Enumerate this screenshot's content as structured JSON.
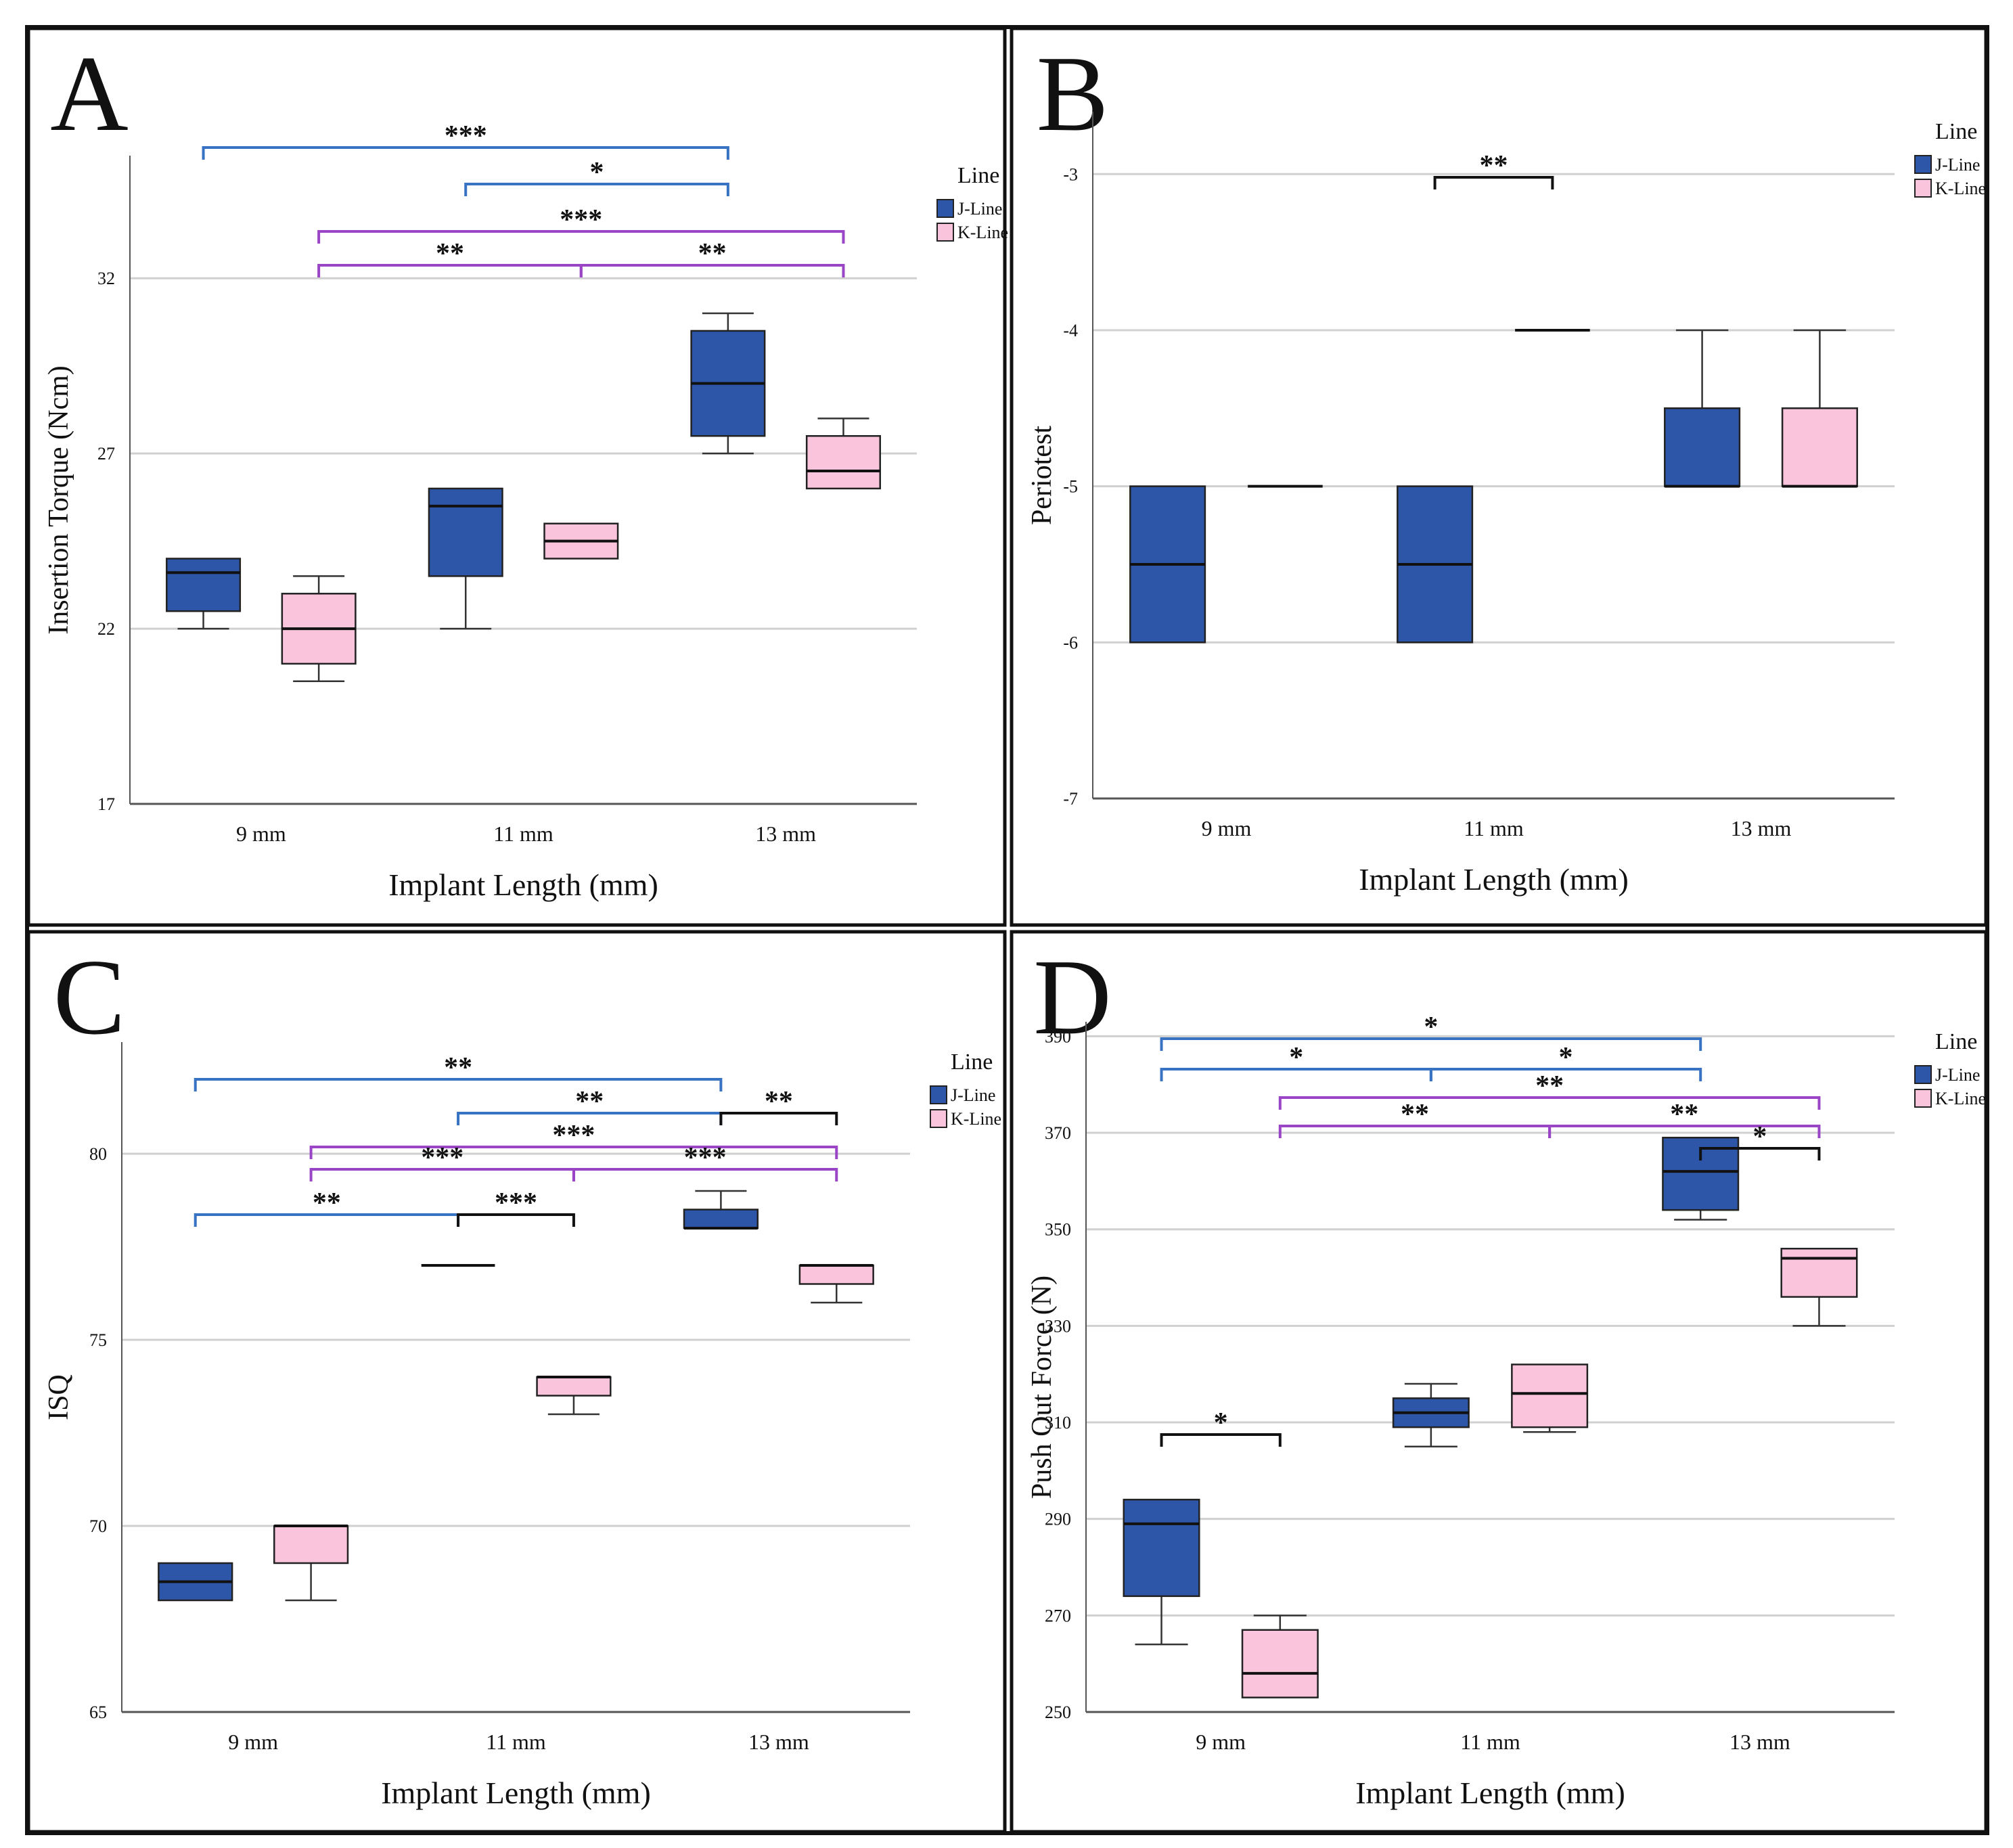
{
  "figure": {
    "colors": {
      "j_line": "#2d56a8",
      "k_line": "#f9c4dc",
      "blue_bracket": "#3872c2",
      "purple_bracket": "#9a45c6",
      "black_bracket": "#111111"
    }
  },
  "chart_data": [
    {
      "panel": "A",
      "type": "box",
      "xlabel": "Implant Length (mm)",
      "ylabel": "Insertion Torque (Ncm)",
      "ylim": [
        17,
        35.5
      ],
      "yticks": [
        17,
        22,
        27,
        32
      ],
      "categories": [
        "9 mm",
        "11 mm",
        "13 mm"
      ],
      "legend_title": "Line",
      "series": [
        {
          "name": "J-Line",
          "boxes": [
            {
              "min": 22,
              "q1": 22.5,
              "median": 23.6,
              "q3": 24,
              "max": 24
            },
            {
              "min": 22,
              "q1": 23.5,
              "median": 25.5,
              "q3": 26,
              "max": 26
            },
            {
              "min": 27,
              "q1": 27.5,
              "median": 29,
              "q3": 30.5,
              "max": 31
            }
          ]
        },
        {
          "name": "K-Line",
          "boxes": [
            {
              "min": 20.5,
              "q1": 21,
              "median": 22,
              "q3": 23,
              "max": 23.5
            },
            {
              "min": 24,
              "q1": 24,
              "median": 24.5,
              "q3": 25,
              "max": 25
            },
            {
              "min": 26,
              "q1": 26,
              "median": 26.5,
              "q3": 27.5,
              "max": 28
            }
          ]
        }
      ],
      "significance": [
        {
          "label": "***",
          "from": "9 mm J-Line",
          "to": "13 mm J-Line",
          "color": "blue"
        },
        {
          "label": "*",
          "from": "11 mm J-Line",
          "to": "13 mm J-Line",
          "color": "blue"
        },
        {
          "label": "***",
          "from": "9 mm K-Line",
          "to": "13 mm K-Line",
          "color": "purple"
        },
        {
          "label": "**",
          "from": "9 mm K-Line",
          "to": "11 mm K-Line",
          "color": "purple"
        },
        {
          "label": "**",
          "from": "11 mm K-Line",
          "to": "13 mm K-Line",
          "color": "purple"
        }
      ]
    },
    {
      "panel": "B",
      "type": "box",
      "xlabel": "Implant Length (mm)",
      "ylabel": "Periotest",
      "ylim": [
        -7,
        -2.6
      ],
      "yticks": [
        -7,
        -6,
        -5,
        -4,
        -3
      ],
      "categories": [
        "9 mm",
        "11 mm",
        "13 mm"
      ],
      "legend_title": "Line",
      "series": [
        {
          "name": "J-Line",
          "boxes": [
            {
              "min": -6,
              "q1": -6,
              "median": -5.5,
              "q3": -5,
              "max": -5
            },
            {
              "min": -6,
              "q1": -6,
              "median": -5.5,
              "q3": -5,
              "max": -5
            },
            {
              "min": -5,
              "q1": -5,
              "median": -5,
              "q3": -4.5,
              "max": -4
            }
          ]
        },
        {
          "name": "K-Line",
          "boxes": [
            {
              "min": -5,
              "q1": -5,
              "median": -5,
              "q3": -5,
              "max": -5
            },
            {
              "min": -4,
              "q1": -4,
              "median": -4,
              "q3": -4,
              "max": -4
            },
            {
              "min": -5,
              "q1": -5,
              "median": -5,
              "q3": -4.5,
              "max": -4
            }
          ]
        }
      ],
      "significance": [
        {
          "label": "**",
          "from": "11 mm J-Line",
          "to": "11 mm K-Line",
          "color": "black"
        }
      ]
    },
    {
      "panel": "C",
      "type": "box",
      "xlabel": "Implant Length (mm)",
      "ylabel": "ISQ",
      "ylim": [
        65,
        83
      ],
      "yticks": [
        65,
        70,
        75,
        80
      ],
      "categories": [
        "9 mm",
        "11 mm",
        "13 mm"
      ],
      "legend_title": "Line",
      "series": [
        {
          "name": "J-Line",
          "boxes": [
            {
              "min": 68,
              "q1": 68,
              "median": 68.5,
              "q3": 69,
              "max": 69
            },
            {
              "min": 77,
              "q1": 77,
              "median": 77,
              "q3": 77,
              "max": 77
            },
            {
              "min": 78,
              "q1": 78,
              "median": 78,
              "q3": 78.5,
              "max": 79
            }
          ]
        },
        {
          "name": "K-Line",
          "boxes": [
            {
              "min": 68,
              "q1": 69,
              "median": 70,
              "q3": 70,
              "max": 70
            },
            {
              "min": 73,
              "q1": 73.5,
              "median": 74,
              "q3": 74,
              "max": 74
            },
            {
              "min": 76,
              "q1": 76.5,
              "median": 77,
              "q3": 77,
              "max": 77
            }
          ]
        }
      ],
      "significance": [
        {
          "label": "**",
          "from": "9 mm J-Line",
          "to": "13 mm J-Line",
          "color": "blue"
        },
        {
          "label": "**",
          "from": "11 mm J-Line",
          "to": "13 mm J-Line",
          "color": "blue"
        },
        {
          "label": "**",
          "from": "13 mm J-Line",
          "to": "13 mm K-Line",
          "color": "black"
        },
        {
          "label": "***",
          "from": "9 mm K-Line",
          "to": "13 mm K-Line",
          "color": "purple"
        },
        {
          "label": "***",
          "from": "9 mm K-Line",
          "to": "11 mm K-Line",
          "color": "purple"
        },
        {
          "label": "***",
          "from": "11 mm K-Line",
          "to": "13 mm K-Line",
          "color": "purple"
        },
        {
          "label": "**",
          "from": "9 mm J-Line",
          "to": "11 mm J-Line",
          "color": "blue"
        },
        {
          "label": "***",
          "from": "11 mm J-Line",
          "to": "11 mm K-Line",
          "color": "black"
        }
      ]
    },
    {
      "panel": "D",
      "type": "box",
      "xlabel": "Implant Length (mm)",
      "ylabel": "Push Out Force (N)",
      "ylim": [
        250,
        393
      ],
      "yticks": [
        250,
        270,
        290,
        310,
        330,
        350,
        370,
        390
      ],
      "categories": [
        "9 mm",
        "11 mm",
        "13 mm"
      ],
      "legend_title": "Line",
      "series": [
        {
          "name": "J-Line",
          "boxes": [
            {
              "min": 264,
              "q1": 274,
              "median": 289,
              "q3": 294,
              "max": 294
            },
            {
              "min": 305,
              "q1": 309,
              "median": 312,
              "q3": 315,
              "max": 318
            },
            {
              "min": 352,
              "q1": 354,
              "median": 362,
              "q3": 369,
              "max": 369
            }
          ]
        },
        {
          "name": "K-Line",
          "boxes": [
            {
              "min": 253,
              "q1": 253,
              "median": 258,
              "q3": 267,
              "max": 270
            },
            {
              "min": 308,
              "q1": 309,
              "median": 316,
              "q3": 322,
              "max": 322
            },
            {
              "min": 330,
              "q1": 336,
              "median": 344,
              "q3": 346,
              "max": 346
            }
          ]
        }
      ],
      "significance": [
        {
          "label": "*",
          "from": "9 mm J-Line",
          "to": "13 mm J-Line",
          "color": "blue"
        },
        {
          "label": "*",
          "from": "9 mm J-Line",
          "to": "11 mm J-Line",
          "color": "blue"
        },
        {
          "label": "*",
          "from": "11 mm J-Line",
          "to": "13 mm J-Line",
          "color": "blue"
        },
        {
          "label": "**",
          "from": "9 mm K-Line",
          "to": "13 mm K-Line",
          "color": "purple"
        },
        {
          "label": "**",
          "from": "9 mm K-Line",
          "to": "11 mm K-Line",
          "color": "purple"
        },
        {
          "label": "**",
          "from": "11 mm K-Line",
          "to": "13 mm K-Line",
          "color": "purple"
        },
        {
          "label": "*",
          "from": "13 mm J-Line",
          "to": "13 mm K-Line",
          "color": "black"
        },
        {
          "label": "*",
          "from": "9 mm J-Line",
          "to": "9 mm K-Line",
          "color": "black"
        }
      ]
    }
  ]
}
